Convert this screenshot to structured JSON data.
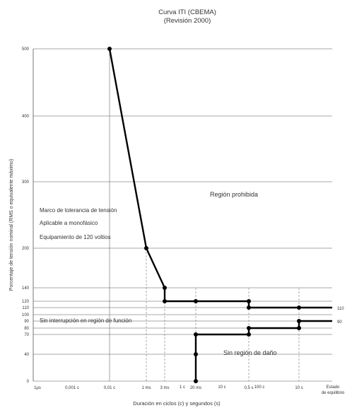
{
  "chart_data": {
    "type": "line",
    "title": "Curva ITI (CBEMA)",
    "subtitle": "(Revisión 2000)",
    "xlabel": "Duración en ciclos (c) y segundos (s)",
    "ylabel_line1": "Porcentaje de tensión nominal (RMS o equivalente máximo)",
    "x_ticks": [
      "1μs",
      "0,001 c",
      "0,01 c",
      "1 ms",
      "3 ms",
      "1 c",
      "20 ms",
      "10 c",
      "0,5 s",
      "100 c",
      "10 s",
      "Estado de equilibrio"
    ],
    "y_ticks": [
      "0",
      "40",
      "70",
      "80",
      "90",
      "100",
      "110",
      "120",
      "140",
      "200",
      "300",
      "400",
      "500"
    ],
    "annotations": {
      "prohibited": "Región prohibida",
      "tolerance_1": "Marco de tolerancia de tensión",
      "tolerance_2": "Aplicable a monofásico",
      "tolerance_3": "Equipamiento de 120 voltios",
      "no_interruption": "Sin interrupción en región de función",
      "no_damage": "Sin región de daño"
    },
    "right_labels": [
      "110",
      "90"
    ],
    "series": [
      {
        "points": [
          {
            "x": "0,01 c",
            "y": 500
          },
          {
            "x": "1 ms",
            "y": 200
          },
          {
            "x": "3 ms",
            "y": 140
          },
          {
            "x": "3 ms",
            "y": 120
          },
          {
            "x": "20 ms",
            "y": 120
          },
          {
            "x": "0,5 s",
            "y": 120
          },
          {
            "x": "0,5 s",
            "y": 110
          },
          {
            "x": "10 s",
            "y": 110
          },
          {
            "x": "Estado de equilibrio",
            "y": 110
          }
        ]
      },
      {
        "points": [
          {
            "x": "20 ms",
            "y": 0
          },
          {
            "x": "20 ms",
            "y": 40
          },
          {
            "x": "20 ms",
            "y": 70
          },
          {
            "x": "0,5 s",
            "y": 70
          },
          {
            "x": "0,5 s",
            "y": 80
          },
          {
            "x": "10 s",
            "y": 80
          },
          {
            "x": "10 s",
            "y": 90
          },
          {
            "x": "Estado de equilibrio",
            "y": 90
          }
        ]
      }
    ]
  }
}
